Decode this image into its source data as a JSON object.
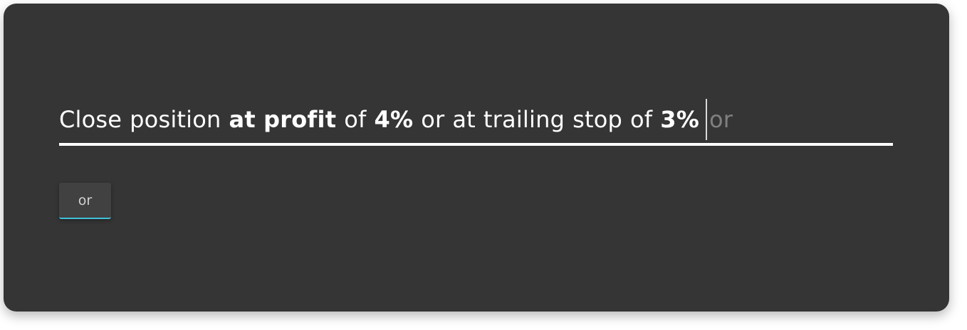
{
  "rule": {
    "words": [
      {
        "text": "Close",
        "bold": false
      },
      {
        "text": "position",
        "bold": false
      },
      {
        "text": "at profit",
        "bold": true
      },
      {
        "text": "of",
        "bold": false
      },
      {
        "text": "4%",
        "bold": true
      },
      {
        "text": "or",
        "bold": false
      },
      {
        "text": "at",
        "bold": false
      },
      {
        "text": "trailing",
        "bold": false
      },
      {
        "text": "stop",
        "bold": false
      },
      {
        "text": "of",
        "bold": false
      },
      {
        "text": "3%",
        "bold": true
      }
    ],
    "suggestion": "or"
  },
  "buttons": {
    "or_label": "or"
  },
  "colors": {
    "card_background": "#353535",
    "text": "#ffffff",
    "suggestion_text": "#7f7f7f",
    "button_accent": "#3fc3dd"
  }
}
